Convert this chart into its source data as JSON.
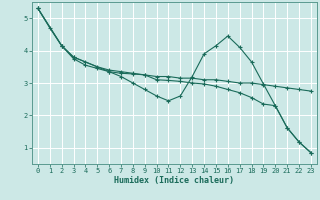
{
  "xlabel": "Humidex (Indice chaleur)",
  "background_color": "#cce8e6",
  "grid_color": "#b8d8d6",
  "line_color": "#1a6b5a",
  "xlim": [
    -0.5,
    23.5
  ],
  "ylim": [
    0.5,
    5.5
  ],
  "yticks": [
    1,
    2,
    3,
    4,
    5
  ],
  "xticks": [
    0,
    1,
    2,
    3,
    4,
    5,
    6,
    7,
    8,
    9,
    10,
    11,
    12,
    13,
    14,
    15,
    16,
    17,
    18,
    19,
    20,
    21,
    22,
    23
  ],
  "lines": [
    {
      "x": [
        0,
        1,
        2,
        3,
        4,
        5,
        6,
        7,
        8,
        9,
        10,
        11,
        12,
        13,
        14,
        15,
        16,
        17,
        18,
        19,
        20,
        21,
        22,
        23
      ],
      "y": [
        5.3,
        4.7,
        4.15,
        3.8,
        3.65,
        3.5,
        3.4,
        3.35,
        3.3,
        3.25,
        3.2,
        3.2,
        3.15,
        3.15,
        3.1,
        3.1,
        3.05,
        3.0,
        3.0,
        2.95,
        2.9,
        2.85,
        2.8,
        2.75
      ]
    },
    {
      "x": [
        0,
        2,
        3,
        6,
        7,
        8,
        9,
        10,
        11,
        12,
        13,
        14,
        15,
        16,
        17,
        18,
        19,
        20,
        21,
        22,
        23
      ],
      "y": [
        5.3,
        4.15,
        3.8,
        3.35,
        3.2,
        3.0,
        2.8,
        2.6,
        2.45,
        2.6,
        3.2,
        3.9,
        4.15,
        4.45,
        4.1,
        3.65,
        2.97,
        2.3,
        1.62,
        1.18,
        0.85
      ]
    },
    {
      "x": [
        0,
        2,
        3,
        4,
        5,
        6,
        7,
        8,
        9,
        10,
        11,
        12,
        13,
        14,
        15,
        16,
        17,
        18,
        19,
        20,
        21,
        22,
        23
      ],
      "y": [
        5.3,
        4.15,
        3.75,
        3.55,
        3.45,
        3.35,
        3.3,
        3.28,
        3.25,
        3.1,
        3.08,
        3.05,
        3.0,
        2.97,
        2.9,
        2.8,
        2.7,
        2.55,
        2.35,
        2.3,
        1.62,
        1.18,
        0.85
      ]
    }
  ]
}
